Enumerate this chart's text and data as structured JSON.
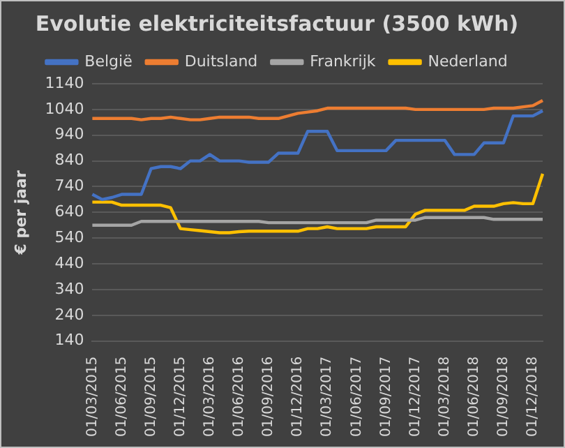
{
  "chart_data": {
    "type": "line",
    "title": "Evolutie elektriciteitsfactuur (3500 kWh)",
    "ylabel": "€ per jaar",
    "categories": [
      "01/03/2015",
      null,
      null,
      "01/06/2015",
      null,
      null,
      "01/09/2015",
      null,
      null,
      "01/12/2015",
      null,
      null,
      "01/03/2016",
      null,
      null,
      "01/06/2016",
      null,
      null,
      "01/09/2016",
      null,
      null,
      "01/12/2016",
      null,
      null,
      "01/03/2017",
      null,
      null,
      "01/06/2017",
      null,
      null,
      "01/09/2017",
      null,
      null,
      "01/12/2017",
      null,
      null,
      "01/03/2018",
      null,
      null,
      "01/06/2018",
      null,
      null,
      "01/09/2018",
      null,
      null,
      "01/12/2018",
      null
    ],
    "series": [
      {
        "name": "België",
        "color": "#4472c4",
        "values": [
          710,
          690,
          698,
          710,
          710,
          710,
          810,
          818,
          818,
          810,
          840,
          840,
          865,
          840,
          840,
          840,
          835,
          835,
          835,
          870,
          870,
          870,
          955,
          955,
          955,
          880,
          880,
          880,
          880,
          880,
          880,
          920,
          920,
          920,
          920,
          920,
          920,
          865,
          865,
          865,
          910,
          910,
          910,
          1015,
          1015,
          1015,
          1035
        ]
      },
      {
        "name": "Duitsland",
        "color": "#ed7d31",
        "values": [
          1005,
          1005,
          1005,
          1005,
          1005,
          1000,
          1005,
          1005,
          1010,
          1005,
          1000,
          1000,
          1005,
          1010,
          1010,
          1010,
          1010,
          1005,
          1005,
          1005,
          1015,
          1025,
          1030,
          1035,
          1045,
          1045,
          1045,
          1045,
          1045,
          1045,
          1045,
          1045,
          1045,
          1040,
          1040,
          1040,
          1040,
          1040,
          1040,
          1040,
          1040,
          1045,
          1045,
          1045,
          1050,
          1055,
          1075
        ]
      },
      {
        "name": "Frankrijk",
        "color": "#a5a5a5",
        "values": [
          590,
          590,
          590,
          590,
          590,
          605,
          605,
          605,
          605,
          605,
          605,
          605,
          605,
          605,
          605,
          605,
          605,
          605,
          600,
          600,
          600,
          600,
          600,
          600,
          600,
          600,
          600,
          600,
          600,
          610,
          610,
          610,
          610,
          610,
          620,
          620,
          620,
          620,
          620,
          620,
          620,
          613,
          613,
          613,
          613,
          613,
          613
        ]
      },
      {
        "name": "Nederland",
        "color": "#ffc000",
        "values": [
          680,
          680,
          680,
          668,
          668,
          668,
          668,
          668,
          658,
          577,
          573,
          569,
          565,
          561,
          561,
          565,
          567,
          567,
          567,
          567,
          567,
          567,
          577,
          577,
          584,
          577,
          577,
          577,
          577,
          584,
          584,
          584,
          584,
          633,
          648,
          648,
          648,
          648,
          648,
          664,
          664,
          664,
          674,
          678,
          674,
          674,
          790
        ]
      }
    ],
    "ylim": [
      140,
      1140
    ],
    "yticks": [
      140,
      240,
      340,
      440,
      540,
      640,
      740,
      840,
      940,
      1040,
      1140
    ],
    "grid": "y",
    "legend": "top",
    "marker": "none",
    "line_style": "solid"
  }
}
